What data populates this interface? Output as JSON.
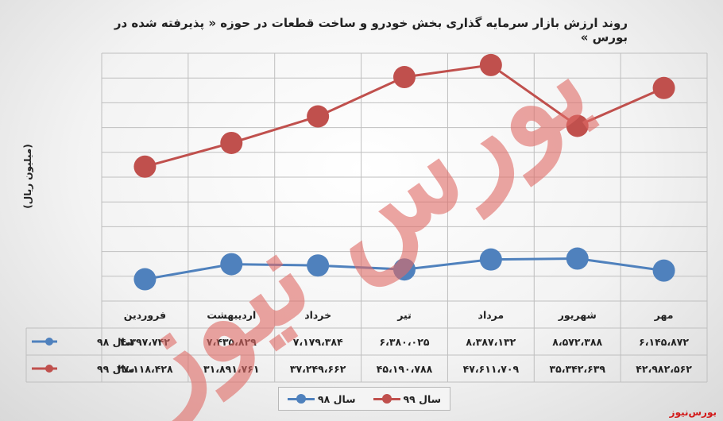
{
  "title": "روند ارزش بازار سرمایه گذاری بخش خودرو و ساخت قطعات در حوزه « پذیرفته شده در بورس »",
  "ylabel": "(میلیون ریال)",
  "brand": "بورس‌نیوز",
  "watermark": "بورس نیوز",
  "colors": {
    "s98": "#4f81bd",
    "s99": "#c0504d",
    "grid": "#bfbfbf",
    "watermark": "#e06b66"
  },
  "chart_data": {
    "type": "line",
    "title": "روند ارزش بازار سرمایه گذاری بخش خودرو و ساخت قطعات در حوزه « پذیرفته شده در بورس »",
    "ylabel": "(میلیون ریال)",
    "categories": [
      "فروردین",
      "اردیبهشت",
      "خرداد",
      "تیر",
      "مرداد",
      "شهریور",
      "مهر"
    ],
    "x_direction": "left-to-right",
    "ylim": [
      0,
      50000000
    ],
    "grid": true,
    "legend_position": "bottom",
    "series": [
      {
        "key": "s98",
        "name": "سال ۹۸",
        "values": [
          4397742,
          7435829,
          7179384,
          6380025,
          8387132,
          8572388,
          6145872
        ],
        "labels": [
          "۴،۳۹۷،۷۴۲",
          "۷،۴۳۵،۸۲۹",
          "۷،۱۷۹،۳۸۴",
          "۶،۳۸۰،۰۲۵",
          "۸،۳۸۷،۱۳۲",
          "۸،۵۷۲،۳۸۸",
          "۶،۱۴۵،۸۷۲"
        ]
      },
      {
        "key": "s99",
        "name": "سال ۹۹",
        "values": [
          27118428,
          31891761,
          37249662,
          45190788,
          47611709,
          35342639,
          42982562
        ],
        "labels": [
          "۲۷،۱۱۸،۴۲۸",
          "۳۱،۸۹۱،۷۶۱",
          "۳۷،۲۴۹،۶۶۲",
          "۴۵،۱۹۰،۷۸۸",
          "۴۷،۶۱۱،۷۰۹",
          "۳۵،۳۴۲،۶۳۹",
          "۴۲،۹۸۲،۵۶۲"
        ]
      }
    ]
  }
}
